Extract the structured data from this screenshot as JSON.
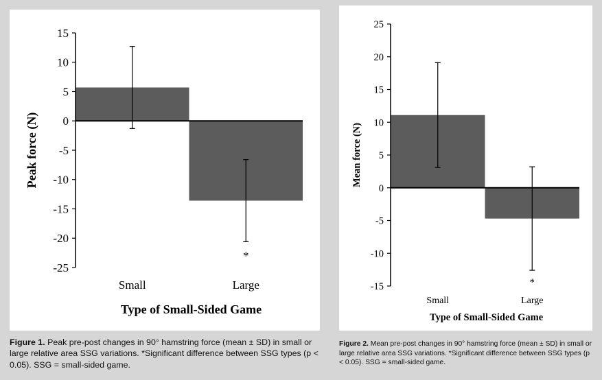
{
  "charts": [
    {
      "id": "fig1",
      "type": "bar",
      "categories": [
        "Small",
        "Large"
      ],
      "values": [
        5.7,
        -13.6
      ],
      "error": [
        7.0,
        7.0
      ],
      "annotations": [
        {
          "category": "Large",
          "text": "*"
        }
      ],
      "ylabel": "Peak force (N)",
      "xlabel": "Type of Small-Sided Game",
      "ylim": [
        -25,
        15
      ],
      "yticks": [
        15,
        10,
        5,
        0,
        -5,
        -10,
        -15,
        -20,
        -25
      ],
      "bar_color": "#5c5c5c",
      "caption_label": "Figure 1.",
      "caption_text": "Peak pre-post changes in 90° hamstring force (mean ± SD) in small or large relative area SSG variations. *Significant difference between SSG types (p < 0.05). SSG = small-sided game."
    },
    {
      "id": "fig2",
      "type": "bar",
      "categories": [
        "Small",
        "Large"
      ],
      "values": [
        11.1,
        -4.7
      ],
      "error": [
        8.0,
        7.9
      ],
      "annotations": [
        {
          "category": "Large",
          "text": "*"
        }
      ],
      "ylabel": "Mean force (N)",
      "xlabel": "Type of Small-Sided Game",
      "ylim": [
        -15,
        25
      ],
      "yticks": [
        25,
        20,
        15,
        10,
        5,
        0,
        -5,
        -10,
        -15
      ],
      "bar_color": "#5c5c5c",
      "caption_label": "Figure 2.",
      "caption_text": "Mean pre-post changes in 90° hamstring force (mean ± SD) in small or large relative area SSG variations. *Significant difference between SSG types (p < 0.05). SSG = small-sided game."
    }
  ]
}
